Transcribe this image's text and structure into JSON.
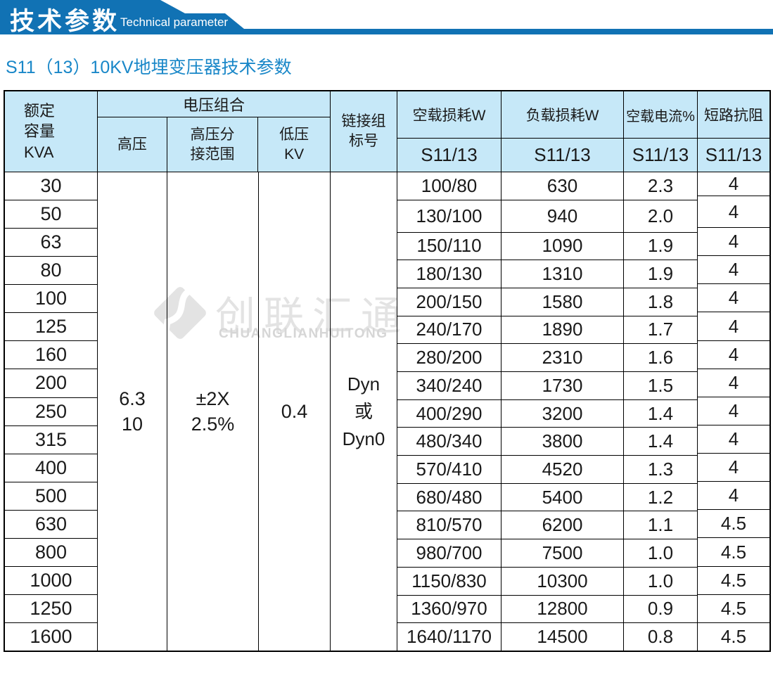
{
  "banner": {
    "title_cn": "技术参数",
    "title_en": "Technical parameter",
    "bg_color": "#1172b4"
  },
  "page_title": {
    "text": "S11（13）10KV地埋变压器技术参数",
    "color": "#1987c8"
  },
  "watermark": {
    "logo_icon": "diamond-logo",
    "text_cn": "创联汇通",
    "text_en": "CHUANGLIANHUITONG",
    "color": "#e3e3e3"
  },
  "table": {
    "header": {
      "capacity": "额定\n容量\nKVA",
      "voltage_group": "电压组合",
      "hv": "高压",
      "hv_tap": "高压分\n接范围",
      "lv": "低压\nKV",
      "vector_group": "链接组\n标号",
      "no_load_loss": "空载损耗W",
      "load_loss": "负载损耗W",
      "no_load_current": "空载电流%",
      "impedance": "短路抗阻",
      "model": "S11/13",
      "header_bg": "#c6e8f8"
    },
    "merged": {
      "hv_value": "6.3\n10",
      "tap_value": "±2X\n2.5%",
      "lv_value": "0.4",
      "vector_value": "Dyn\n或\nDyn0"
    },
    "rows": [
      {
        "kva": "30",
        "no_load_loss": "100/80",
        "load_loss": "630",
        "no_load_current": "2.3",
        "impedance": "4"
      },
      {
        "kva": "50",
        "no_load_loss": "130/100",
        "load_loss": "940",
        "no_load_current": "2.0",
        "impedance": "4"
      },
      {
        "kva": "63",
        "no_load_loss": "150/110",
        "load_loss": "1090",
        "no_load_current": "1.9",
        "impedance": "4"
      },
      {
        "kva": "80",
        "no_load_loss": "180/130",
        "load_loss": "1310",
        "no_load_current": "1.9",
        "impedance": "4"
      },
      {
        "kva": "100",
        "no_load_loss": "200/150",
        "load_loss": "1580",
        "no_load_current": "1.8",
        "impedance": "4"
      },
      {
        "kva": "125",
        "no_load_loss": "240/170",
        "load_loss": "1890",
        "no_load_current": "1.7",
        "impedance": "4"
      },
      {
        "kva": "160",
        "no_load_loss": "280/200",
        "load_loss": "2310",
        "no_load_current": "1.6",
        "impedance": "4"
      },
      {
        "kva": "200",
        "no_load_loss": "340/240",
        "load_loss": "1730",
        "no_load_current": "1.5",
        "impedance": "4"
      },
      {
        "kva": "250",
        "no_load_loss": "400/290",
        "load_loss": "3200",
        "no_load_current": "1.4",
        "impedance": "4"
      },
      {
        "kva": "315",
        "no_load_loss": "480/340",
        "load_loss": "3800",
        "no_load_current": "1.4",
        "impedance": "4"
      },
      {
        "kva": "400",
        "no_load_loss": "570/410",
        "load_loss": "4520",
        "no_load_current": "1.3",
        "impedance": "4"
      },
      {
        "kva": "500",
        "no_load_loss": "680/480",
        "load_loss": "5400",
        "no_load_current": "1.2",
        "impedance": "4"
      },
      {
        "kva": "630",
        "no_load_loss": "810/570",
        "load_loss": "6200",
        "no_load_current": "1.1",
        "impedance": "4.5"
      },
      {
        "kva": "800",
        "no_load_loss": "980/700",
        "load_loss": "7500",
        "no_load_current": "1.0",
        "impedance": "4.5"
      },
      {
        "kva": "1000",
        "no_load_loss": "1150/830",
        "load_loss": "10300",
        "no_load_current": "1.0",
        "impedance": "4.5"
      },
      {
        "kva": "1250",
        "no_load_loss": "1360/970",
        "load_loss": "12800",
        "no_load_current": "0.9",
        "impedance": "4.5"
      },
      {
        "kva": "1600",
        "no_load_loss": "1640/1170",
        "load_loss": "14500",
        "no_load_current": "0.8",
        "impedance": "4.5"
      }
    ]
  }
}
